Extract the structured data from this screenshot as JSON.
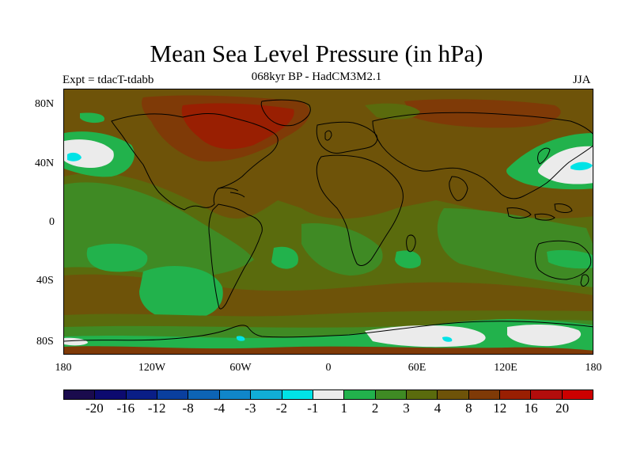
{
  "title": "Mean Sea Level Pressure (in hPa)",
  "subtitle": "068kyr BP - HadCM3M2.1",
  "experiment": "Expt = tdacT-tdabb",
  "season": "JJA",
  "lat_labels": [
    "80N",
    "40N",
    "0",
    "40S",
    "80S"
  ],
  "lon_labels": [
    "180",
    "120W",
    "60W",
    "0",
    "60E",
    "120E",
    "180"
  ],
  "colorbar": {
    "labels": [
      "-20",
      "-16",
      "-12",
      "-8",
      "-4",
      "-3",
      "-2",
      "-1",
      "1",
      "2",
      "3",
      "4",
      "8",
      "12",
      "16",
      "20"
    ],
    "colors": [
      "#1a0b4d",
      "#0c0a6f",
      "#0a1e86",
      "#0a3f9e",
      "#0d64b5",
      "#1086c9",
      "#11aed6",
      "#00e3e6",
      "#ebebeb",
      "#22b24c",
      "#3f8a24",
      "#5a6b0d",
      "#6e5309",
      "#7f3a07",
      "#991f02",
      "#b30d0c",
      "#cc0000"
    ]
  },
  "palette": {
    "background": "#6e5309",
    "land": "#6e5309",
    "level_1_2": "#22b24c",
    "level_2_3": "#3f8a24",
    "level_3_4": "#5a6b0d",
    "level_8_12": "#7f3a07",
    "level_12_16": "#991f02",
    "level_minus1_1": "#ebebeb",
    "level_minus2_minus1": "#00e3e6"
  }
}
